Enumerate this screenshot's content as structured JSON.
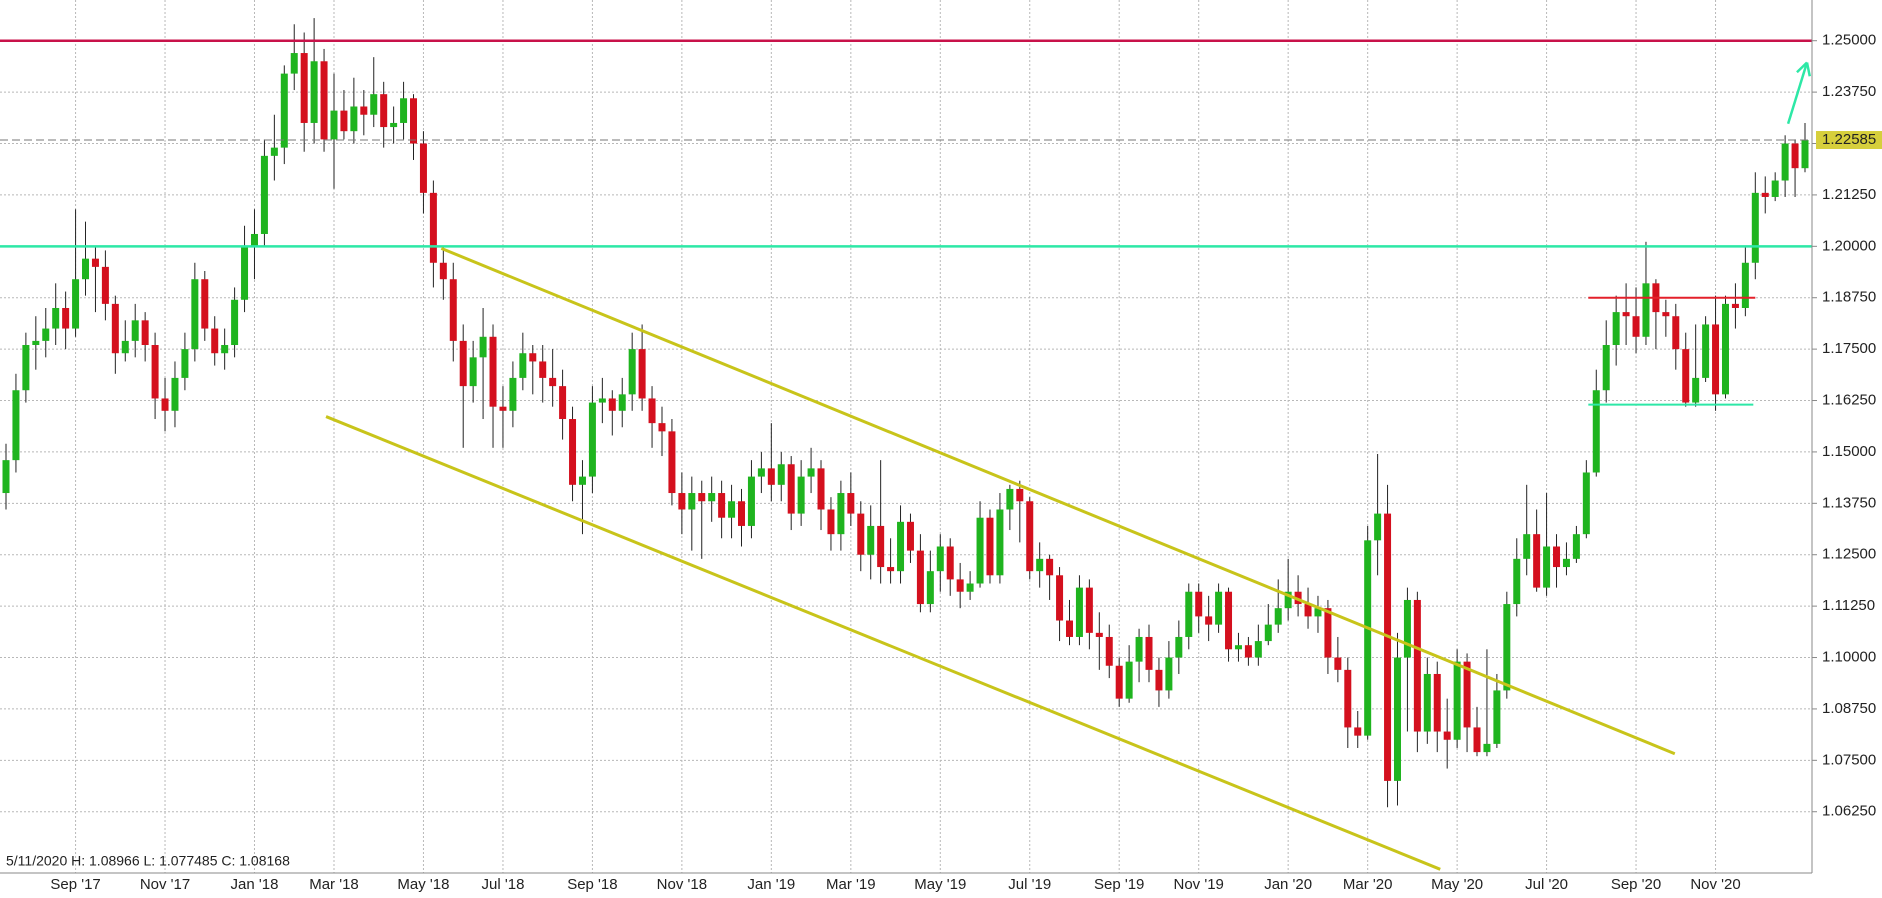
{
  "chart_data": {
    "type": "candlestick",
    "categories": [
      null,
      null,
      null,
      null,
      null,
      null,
      null,
      "Sep '17",
      null,
      null,
      null,
      null,
      null,
      null,
      null,
      null,
      "Nov '17",
      null,
      null,
      null,
      null,
      null,
      null,
      null,
      null,
      "Jan '18",
      null,
      null,
      null,
      null,
      null,
      null,
      null,
      "Mar '18",
      null,
      null,
      null,
      null,
      null,
      null,
      null,
      null,
      "May '18",
      null,
      null,
      null,
      null,
      null,
      null,
      null,
      "Jul '18",
      null,
      null,
      null,
      null,
      null,
      null,
      null,
      null,
      "Sep '18",
      null,
      null,
      null,
      null,
      null,
      null,
      null,
      null,
      "Nov '18",
      null,
      null,
      null,
      null,
      null,
      null,
      null,
      null,
      "Jan '19",
      null,
      null,
      null,
      null,
      null,
      null,
      null,
      "Mar '19",
      null,
      null,
      null,
      null,
      null,
      null,
      null,
      null,
      "May '19",
      null,
      null,
      null,
      null,
      null,
      null,
      null,
      null,
      "Jul '19",
      null,
      null,
      null,
      null,
      null,
      null,
      null,
      null,
      "Sep '19",
      null,
      null,
      null,
      null,
      null,
      null,
      null,
      "Nov '19",
      null,
      null,
      null,
      null,
      null,
      null,
      null,
      null,
      "Jan '20",
      null,
      null,
      null,
      null,
      null,
      null,
      null,
      "Mar '20",
      null,
      null,
      null,
      null,
      null,
      null,
      null,
      null,
      "May '20",
      null,
      null,
      null,
      null,
      null,
      null,
      null,
      null,
      "Jul '20",
      null,
      null,
      null,
      null,
      null,
      null,
      null,
      null,
      "Sep '20",
      null,
      null,
      null,
      null,
      null,
      null,
      null,
      "Nov '20",
      null,
      null,
      null,
      null,
      null,
      null,
      null,
      null,
      null
    ],
    "open": [
      1.14,
      1.148,
      1.165,
      1.176,
      1.177,
      1.18,
      1.185,
      1.18,
      1.192,
      1.197,
      1.195,
      1.186,
      1.174,
      1.177,
      1.182,
      1.176,
      1.163,
      1.16,
      1.168,
      1.175,
      1.192,
      1.18,
      1.174,
      1.176,
      1.187,
      1.2,
      1.203,
      1.222,
      1.224,
      1.242,
      1.247,
      1.23,
      1.245,
      1.226,
      1.233,
      1.228,
      1.234,
      1.232,
      1.237,
      1.229,
      1.23,
      1.236,
      1.225,
      1.213,
      1.196,
      1.192,
      1.177,
      1.166,
      1.173,
      1.178,
      1.161,
      1.16,
      1.168,
      1.174,
      1.172,
      1.168,
      1.166,
      1.158,
      1.142,
      1.144,
      1.162,
      1.163,
      1.16,
      1.164,
      1.175,
      1.163,
      1.157,
      1.155,
      1.14,
      1.136,
      1.14,
      1.138,
      1.14,
      1.134,
      1.138,
      1.132,
      1.144,
      1.146,
      1.142,
      1.147,
      1.135,
      1.144,
      1.146,
      1.136,
      1.13,
      1.14,
      1.135,
      1.125,
      1.132,
      1.122,
      1.121,
      1.133,
      1.126,
      1.113,
      1.121,
      1.127,
      1.119,
      1.116,
      1.118,
      1.134,
      1.12,
      1.136,
      1.141,
      1.138,
      1.121,
      1.124,
      1.12,
      1.109,
      1.105,
      1.117,
      1.106,
      1.105,
      1.098,
      1.09,
      1.099,
      1.105,
      1.097,
      1.092,
      1.1,
      1.105,
      1.116,
      1.11,
      1.108,
      1.116,
      1.102,
      1.103,
      1.1,
      1.104,
      1.108,
      1.112,
      1.116,
      1.113,
      1.11,
      1.112,
      1.1,
      1.097,
      1.083,
      1.081,
      1.1285,
      1.135,
      1.07,
      1.1,
      1.114,
      1.082,
      1.096,
      1.082,
      1.08,
      1.099,
      1.083,
      1.077,
      1.079,
      1.092,
      1.113,
      1.124,
      1.13,
      1.117,
      1.127,
      1.122,
      1.124,
      1.13,
      1.145,
      1.165,
      1.176,
      1.184,
      1.183,
      1.178,
      1.191,
      1.184,
      1.183,
      1.175,
      1.162,
      1.168,
      1.181,
      1.164,
      1.186,
      1.185,
      1.196,
      1.213,
      1.212,
      1.216,
      1.225,
      1.219
    ],
    "high": [
      1.152,
      1.169,
      1.179,
      1.183,
      1.185,
      1.191,
      1.189,
      1.209,
      1.206,
      1.2,
      1.199,
      1.188,
      1.182,
      1.186,
      1.184,
      1.179,
      1.168,
      1.172,
      1.179,
      1.196,
      1.194,
      1.183,
      1.18,
      1.19,
      1.205,
      1.209,
      1.226,
      1.232,
      1.244,
      1.254,
      1.252,
      1.2555,
      1.248,
      1.242,
      1.238,
      1.241,
      1.238,
      1.246,
      1.24,
      1.234,
      1.24,
      1.237,
      1.228,
      1.216,
      1.2,
      1.196,
      1.181,
      1.177,
      1.185,
      1.181,
      1.166,
      1.172,
      1.179,
      1.176,
      1.176,
      1.175,
      1.17,
      1.161,
      1.148,
      1.166,
      1.168,
      1.165,
      1.168,
      1.179,
      1.181,
      1.166,
      1.161,
      1.158,
      1.145,
      1.144,
      1.143,
      1.144,
      1.143,
      1.142,
      1.141,
      1.148,
      1.15,
      1.157,
      1.15,
      1.149,
      1.148,
      1.151,
      1.148,
      1.139,
      1.143,
      1.145,
      1.138,
      1.137,
      1.148,
      1.129,
      1.137,
      1.135,
      1.13,
      1.126,
      1.13,
      1.129,
      1.123,
      1.121,
      1.138,
      1.136,
      1.14,
      1.142,
      1.143,
      1.139,
      1.128,
      1.125,
      1.122,
      1.114,
      1.12,
      1.119,
      1.111,
      1.108,
      1.1,
      1.103,
      1.107,
      1.108,
      1.1,
      1.104,
      1.109,
      1.118,
      1.118,
      1.115,
      1.118,
      1.117,
      1.106,
      1.105,
      1.108,
      1.113,
      1.119,
      1.124,
      1.12,
      1.117,
      1.115,
      1.114,
      1.105,
      1.1,
      1.087,
      1.132,
      1.1495,
      1.142,
      1.106,
      1.117,
      1.116,
      1.1,
      1.099,
      1.09,
      1.102,
      1.101,
      1.088,
      1.102,
      1.096,
      1.116,
      1.129,
      1.142,
      1.136,
      1.14,
      1.13,
      1.128,
      1.132,
      1.148,
      1.17,
      1.182,
      1.188,
      1.191,
      1.19,
      1.2011,
      1.192,
      1.187,
      1.186,
      1.179,
      1.181,
      1.183,
      1.188,
      1.188,
      1.191,
      1.2,
      1.218,
      1.217,
      1.218,
      1.227,
      1.226,
      1.23
    ],
    "low": [
      1.136,
      1.145,
      1.162,
      1.17,
      1.173,
      1.176,
      1.175,
      1.178,
      1.188,
      1.184,
      1.182,
      1.169,
      1.172,
      1.173,
      1.172,
      1.158,
      1.155,
      1.156,
      1.165,
      1.172,
      1.177,
      1.171,
      1.17,
      1.173,
      1.184,
      1.192,
      1.2,
      1.216,
      1.22,
      1.238,
      1.223,
      1.225,
      1.223,
      1.214,
      1.226,
      1.225,
      1.227,
      1.229,
      1.224,
      1.225,
      1.226,
      1.221,
      1.208,
      1.19,
      1.187,
      1.172,
      1.151,
      1.162,
      1.158,
      1.151,
      1.151,
      1.156,
      1.165,
      1.164,
      1.162,
      1.161,
      1.153,
      1.138,
      1.13,
      1.14,
      1.157,
      1.154,
      1.156,
      1.16,
      1.16,
      1.151,
      1.149,
      1.137,
      1.13,
      1.126,
      1.124,
      1.133,
      1.129,
      1.129,
      1.127,
      1.129,
      1.14,
      1.138,
      1.138,
      1.131,
      1.132,
      1.14,
      1.131,
      1.126,
      1.126,
      1.132,
      1.121,
      1.119,
      1.118,
      1.118,
      1.118,
      1.123,
      1.111,
      1.111,
      1.116,
      1.115,
      1.112,
      1.114,
      1.117,
      1.118,
      1.118,
      1.131,
      1.128,
      1.119,
      1.117,
      1.114,
      1.104,
      1.103,
      1.103,
      1.102,
      1.097,
      1.095,
      1.088,
      1.089,
      1.094,
      1.094,
      1.088,
      1.09,
      1.096,
      1.102,
      1.106,
      1.104,
      1.106,
      1.099,
      1.099,
      1.098,
      1.098,
      1.103,
      1.106,
      1.109,
      1.11,
      1.107,
      1.106,
      1.096,
      1.094,
      1.078,
      1.078,
      1.08,
      1.12,
      1.0636,
      1.064,
      1.082,
      1.077,
      1.079,
      1.077,
      1.073,
      1.078,
      1.077,
      1.076,
      1.076,
      1.078,
      1.09,
      1.11,
      1.12,
      1.116,
      1.115,
      1.117,
      1.12,
      1.123,
      1.129,
      1.144,
      1.162,
      1.171,
      1.176,
      1.174,
      1.176,
      1.175,
      1.178,
      1.17,
      1.161,
      1.161,
      1.167,
      1.16,
      1.163,
      1.18,
      1.183,
      1.192,
      1.208,
      1.211,
      1.212,
      1.212,
      1.218
    ],
    "close": [
      1.148,
      1.165,
      1.176,
      1.177,
      1.18,
      1.185,
      1.18,
      1.192,
      1.197,
      1.195,
      1.186,
      1.174,
      1.177,
      1.182,
      1.176,
      1.163,
      1.16,
      1.168,
      1.175,
      1.192,
      1.18,
      1.174,
      1.176,
      1.187,
      1.2,
      1.203,
      1.222,
      1.224,
      1.242,
      1.247,
      1.23,
      1.245,
      1.226,
      1.233,
      1.228,
      1.234,
      1.232,
      1.237,
      1.229,
      1.23,
      1.236,
      1.225,
      1.213,
      1.196,
      1.192,
      1.177,
      1.166,
      1.173,
      1.178,
      1.161,
      1.16,
      1.168,
      1.174,
      1.172,
      1.168,
      1.166,
      1.158,
      1.142,
      1.144,
      1.162,
      1.163,
      1.16,
      1.164,
      1.175,
      1.163,
      1.157,
      1.155,
      1.14,
      1.136,
      1.14,
      1.138,
      1.14,
      1.134,
      1.138,
      1.132,
      1.144,
      1.146,
      1.142,
      1.147,
      1.135,
      1.144,
      1.146,
      1.136,
      1.13,
      1.14,
      1.135,
      1.125,
      1.132,
      1.122,
      1.121,
      1.133,
      1.126,
      1.113,
      1.121,
      1.127,
      1.119,
      1.116,
      1.118,
      1.134,
      1.12,
      1.136,
      1.141,
      1.138,
      1.121,
      1.124,
      1.12,
      1.109,
      1.105,
      1.117,
      1.106,
      1.105,
      1.098,
      1.09,
      1.099,
      1.105,
      1.097,
      1.092,
      1.1,
      1.105,
      1.116,
      1.11,
      1.108,
      1.116,
      1.102,
      1.103,
      1.1,
      1.104,
      1.108,
      1.112,
      1.116,
      1.113,
      1.11,
      1.112,
      1.1,
      1.097,
      1.083,
      1.081,
      1.1285,
      1.135,
      1.07,
      1.1,
      1.114,
      1.082,
      1.096,
      1.082,
      1.08,
      1.099,
      1.083,
      1.077,
      1.079,
      1.092,
      1.113,
      1.124,
      1.13,
      1.117,
      1.127,
      1.122,
      1.124,
      1.13,
      1.145,
      1.165,
      1.176,
      1.184,
      1.183,
      1.178,
      1.191,
      1.184,
      1.183,
      1.175,
      1.162,
      1.168,
      1.181,
      1.164,
      1.186,
      1.185,
      1.196,
      1.213,
      1.212,
      1.216,
      1.225,
      1.219,
      1.22585
    ],
    "up_color": "#1fb41f",
    "down_color": "#d4101e",
    "ylim": [
      1.0476,
      1.2599
    ],
    "yticks": [
      {
        "value": 1.0625,
        "label": "1.06250"
      },
      {
        "value": 1.075,
        "label": "1.07500"
      },
      {
        "value": 1.0875,
        "label": "1.08750"
      },
      {
        "value": 1.1,
        "label": "1.10000"
      },
      {
        "value": 1.1125,
        "label": "1.11250"
      },
      {
        "value": 1.125,
        "label": "1.12500"
      },
      {
        "value": 1.1375,
        "label": "1.13750"
      },
      {
        "value": 1.15,
        "label": "1.15000"
      },
      {
        "value": 1.1625,
        "label": "1.16250"
      },
      {
        "value": 1.175,
        "label": "1.17500"
      },
      {
        "value": 1.1875,
        "label": "1.18750"
      },
      {
        "value": 1.2,
        "label": "1.20000"
      },
      {
        "value": 1.2125,
        "label": "1.21250"
      },
      {
        "value": 1.225,
        "label": "1.22500"
      },
      {
        "value": 1.2375,
        "label": "1.23750"
      },
      {
        "value": 1.25,
        "label": "1.25000"
      }
    ],
    "grid": true,
    "last_price": {
      "value": 1.22585,
      "label": "1.22585",
      "color": "#d6cf3c"
    },
    "hlines": [
      {
        "value": 1.25,
        "color": "#c8124a"
      },
      {
        "value": 1.2,
        "color": "#2de8a6"
      }
    ],
    "segments": [
      {
        "x": [
          159.2,
          176
        ],
        "y": [
          1.1875,
          1.1875
        ],
        "color": "#e4202a"
      },
      {
        "x": [
          159.2,
          175.8
        ],
        "y": [
          1.1615,
          1.1615
        ],
        "color": "#2de8a6"
      }
    ],
    "trendlines": [
      {
        "x": [
          43.8,
          167.9
        ],
        "y": [
          1.1995,
          1.0766
        ],
        "color": "#c8c41a"
      },
      {
        "x": [
          32.2,
          144.3
        ],
        "y": [
          1.1586,
          1.0485
        ],
        "color": "#c8c41a"
      }
    ],
    "arrow": {
      "x": [
        179.3,
        181.2
      ],
      "y": [
        1.2298,
        1.2447
      ],
      "color": "#2de8a6"
    },
    "readout": "5/11/2020 H: 1.08966 L: 1.077485 C: 1.08168"
  }
}
